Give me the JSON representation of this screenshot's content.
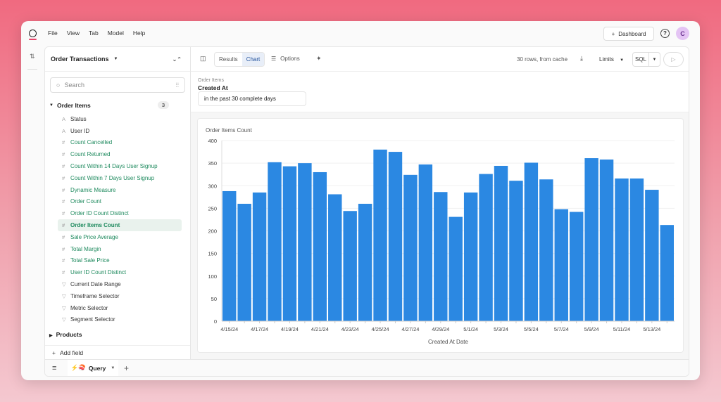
{
  "menubar": {
    "items": [
      "File",
      "View",
      "Tab",
      "Model",
      "Help"
    ],
    "dashboard_button": "Dashboard",
    "help": "?",
    "avatar": "C"
  },
  "sidebar": {
    "title": "Order Transactions",
    "search_placeholder": "Search",
    "group": {
      "label": "Order Items",
      "count": "3"
    },
    "fields": [
      {
        "label": "Status",
        "kind": "dim"
      },
      {
        "label": "User ID",
        "kind": "dim"
      },
      {
        "label": "Count Cancelled",
        "kind": "meas"
      },
      {
        "label": "Count Returned",
        "kind": "meas"
      },
      {
        "label": "Count Within 14 Days User Signup",
        "kind": "meas"
      },
      {
        "label": "Count Within 7 Days User Signup",
        "kind": "meas"
      },
      {
        "label": "Dynamic Measure",
        "kind": "meas"
      },
      {
        "label": "Order Count",
        "kind": "meas"
      },
      {
        "label": "Order ID Count Distinct",
        "kind": "meas"
      },
      {
        "label": "Order Items Count",
        "kind": "meas",
        "selected": true
      },
      {
        "label": "Sale Price Average",
        "kind": "meas"
      },
      {
        "label": "Total Margin",
        "kind": "meas"
      },
      {
        "label": "Total Sale Price",
        "kind": "meas"
      },
      {
        "label": "User ID Count Distinct",
        "kind": "meas"
      },
      {
        "label": "Current Date Range",
        "kind": "filter"
      },
      {
        "label": "Timeframe Selector",
        "kind": "filter"
      },
      {
        "label": "Metric Selector",
        "kind": "filter"
      },
      {
        "label": "Segment Selector",
        "kind": "filter"
      }
    ],
    "products": "Products",
    "add_field": "Add field"
  },
  "toolbar": {
    "results": "Results",
    "chart": "Chart",
    "options": "Options",
    "rows_status": "30 rows, from cache",
    "limits": "Limits",
    "sql": "SQL"
  },
  "filter": {
    "view": "Order Items",
    "field": "Created At",
    "value": "in the past 30 complete days"
  },
  "bottom": {
    "tab_label": "Query",
    "tab_emoji": "⚡🍣"
  },
  "colors": {
    "bar": "#2b88e2",
    "measure": "#1e8a5e",
    "accent": "#d64a7a"
  },
  "chart_data": {
    "type": "bar",
    "ylabel": "Order Items Count",
    "xlabel": "Created At Date",
    "ylim": [
      0,
      400
    ],
    "yticks": [
      0,
      50,
      100,
      150,
      200,
      250,
      300,
      350,
      400
    ],
    "grid": true,
    "categories": [
      "4/15/24",
      "4/16/24",
      "4/17/24",
      "4/18/24",
      "4/19/24",
      "4/20/24",
      "4/21/24",
      "4/22/24",
      "4/23/24",
      "4/24/24",
      "4/25/24",
      "4/26/24",
      "4/27/24",
      "4/28/24",
      "4/29/24",
      "4/30/24",
      "5/1/24",
      "5/2/24",
      "5/3/24",
      "5/4/24",
      "5/5/24",
      "5/6/24",
      "5/7/24",
      "5/8/24",
      "5/9/24",
      "5/10/24",
      "5/11/24",
      "5/12/24",
      "5/13/24",
      "5/14/24"
    ],
    "values": [
      288,
      260,
      285,
      352,
      343,
      350,
      330,
      281,
      244,
      260,
      380,
      375,
      324,
      347,
      286,
      231,
      285,
      326,
      344,
      311,
      351,
      314,
      248,
      242,
      361,
      358,
      316,
      316,
      291,
      213
    ]
  }
}
